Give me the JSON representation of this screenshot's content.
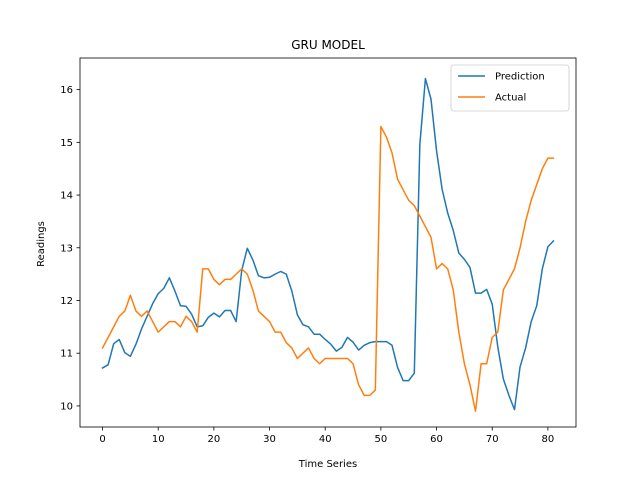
{
  "chart_data": {
    "type": "line",
    "title": "GRU MODEL",
    "xlabel": "Time Series",
    "ylabel": "Readings",
    "xlim": [
      -4.05,
      85.05
    ],
    "ylim": [
      9.6,
      16.6
    ],
    "xticks": [
      0,
      10,
      20,
      30,
      40,
      50,
      60,
      70,
      80
    ],
    "yticks": [
      10,
      11,
      12,
      13,
      14,
      15,
      16
    ],
    "grid": false,
    "legend_position": "top-right",
    "series": [
      {
        "name": "Prediction",
        "color": "#1f77b4",
        "values": [
          10.72,
          10.78,
          11.18,
          11.26,
          11.01,
          10.94,
          11.17,
          11.46,
          11.7,
          11.94,
          12.13,
          12.23,
          12.43,
          12.18,
          11.9,
          11.89,
          11.74,
          11.5,
          11.52,
          11.68,
          11.76,
          11.69,
          11.81,
          11.81,
          11.6,
          12.57,
          12.99,
          12.77,
          12.47,
          12.43,
          12.44,
          12.5,
          12.55,
          12.5,
          12.18,
          11.73,
          11.54,
          11.5,
          11.36,
          11.36,
          11.26,
          11.17,
          11.04,
          11.11,
          11.3,
          11.21,
          11.06,
          11.15,
          11.2,
          11.22,
          11.22,
          11.22,
          11.15,
          10.73,
          10.48,
          10.48,
          10.62,
          14.96,
          16.21,
          15.82,
          14.84,
          14.11,
          13.66,
          13.33,
          12.9,
          12.78,
          12.63,
          12.14,
          12.14,
          12.21,
          11.93,
          11.12,
          10.51,
          10.2,
          9.93,
          10.74,
          11.1,
          11.6,
          11.9,
          12.6,
          13.02,
          13.13
        ]
      },
      {
        "name": "Actual",
        "color": "#ff7f0e",
        "values": [
          11.1,
          11.3,
          11.5,
          11.7,
          11.8,
          12.1,
          11.8,
          11.7,
          11.8,
          11.6,
          11.4,
          11.5,
          11.6,
          11.6,
          11.5,
          11.7,
          11.6,
          11.4,
          12.6,
          12.6,
          12.4,
          12.3,
          12.4,
          12.4,
          12.5,
          12.6,
          12.5,
          12.2,
          11.8,
          11.7,
          11.6,
          11.4,
          11.4,
          11.2,
          11.1,
          10.9,
          11.0,
          11.1,
          10.9,
          10.8,
          10.9,
          10.9,
          10.9,
          10.9,
          10.9,
          10.8,
          10.4,
          10.2,
          10.2,
          10.3,
          15.3,
          15.1,
          14.8,
          14.3,
          14.1,
          13.9,
          13.8,
          13.6,
          13.4,
          13.2,
          12.6,
          12.7,
          12.6,
          12.2,
          11.4,
          10.8,
          10.4,
          9.9,
          10.8,
          10.8,
          11.3,
          11.4,
          12.2,
          12.4,
          12.6,
          13.0,
          13.5,
          13.9,
          14.2,
          14.5,
          14.7,
          14.7
        ]
      }
    ]
  }
}
